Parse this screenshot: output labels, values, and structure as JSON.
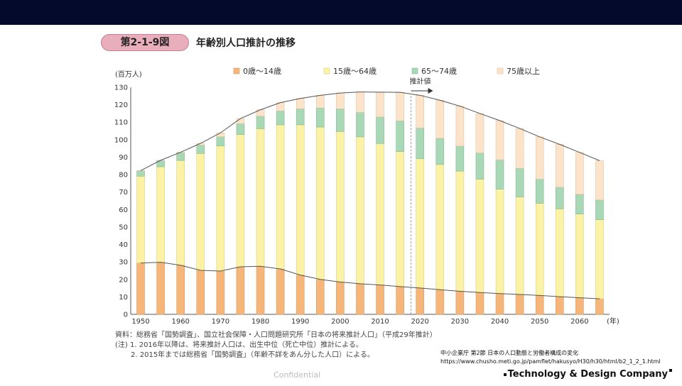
{
  "figure": {
    "badge": "第2-1-9図",
    "title": "年齢別人口推計の推移"
  },
  "chart_data": {
    "type": "bar",
    "stacked": true,
    "ylabel": "(百万人)",
    "xunit": "(年)",
    "ylim": [
      0,
      130
    ],
    "yticks": [
      0,
      10,
      20,
      30,
      40,
      50,
      60,
      70,
      80,
      90,
      100,
      110,
      120,
      130
    ],
    "x": [
      1950,
      1955,
      1960,
      1965,
      1970,
      1975,
      1980,
      1985,
      1990,
      1995,
      2000,
      2005,
      2010,
      2015,
      2020,
      2025,
      2030,
      2035,
      2040,
      2045,
      2050,
      2055,
      2060,
      2065
    ],
    "xtick_labels": [
      "1950",
      "1960",
      "1970",
      "1980",
      "1990",
      "2000",
      "2010",
      "2020",
      "2030",
      "2040",
      "2050",
      "2060"
    ],
    "projection_start": 2016,
    "projection_label": "推計値",
    "series": [
      {
        "name": "0歳～14歳",
        "color": "#f6b67a",
        "values": [
          29.4,
          29.8,
          28.1,
          25.2,
          24.8,
          27.2,
          27.5,
          26.0,
          22.5,
          20.0,
          18.5,
          17.5,
          16.8,
          15.9,
          15.1,
          14.1,
          13.2,
          12.5,
          11.9,
          11.4,
          10.8,
          10.1,
          9.5,
          8.9
        ]
      },
      {
        "name": "15歳～64歳",
        "color": "#fbf2a6",
        "values": [
          49.7,
          54.7,
          60.0,
          66.9,
          71.6,
          75.7,
          78.8,
          82.5,
          86.0,
          87.2,
          86.2,
          84.1,
          81.0,
          77.3,
          74.1,
          71.7,
          68.8,
          64.9,
          59.8,
          55.8,
          52.8,
          50.3,
          47.9,
          45.3
        ]
      },
      {
        "name": "65～74歳",
        "color": "#a8d8b5",
        "values": [
          3.1,
          3.5,
          4.4,
          4.8,
          5.3,
          6.3,
          7.1,
          8.0,
          9.2,
          11.0,
          13.0,
          14.1,
          15.2,
          17.6,
          17.5,
          15.0,
          14.3,
          15.0,
          16.8,
          16.4,
          13.8,
          12.4,
          11.3,
          11.3
        ]
      },
      {
        "name": "75歳以上",
        "color": "#fde3c9",
        "values": [
          0.1,
          0.2,
          0.3,
          1.0,
          2.2,
          2.9,
          3.7,
          4.7,
          5.9,
          7.2,
          9.0,
          11.6,
          14.2,
          16.3,
          18.7,
          21.8,
          22.9,
          22.6,
          22.4,
          22.8,
          24.2,
          24.5,
          24.0,
          22.5
        ]
      }
    ]
  },
  "notes": {
    "source": "資料：総務省「国勢調査」、国立社会保障・人口問題研究所「日本の将来推計人口」（平成29年推計）",
    "note1": "(注) 1. 2016年以降は、将来推計人口は、出生中位（死亡中位）推計による。",
    "note2": "2. 2015年までは総務省「国勢調査」（年齢不詳をあん分した人口）による。"
  },
  "citation": {
    "line1": "中小企業庁 第2節 日本の人口動態と労働者構成の変化",
    "line2": "https://www.chusho.meti.go.jp/pamflet/hakusyo/H30/h30/html/b2_1_2_1.html"
  },
  "footer": {
    "confidential": "Confidential",
    "logo": "Technology & Design Company"
  }
}
